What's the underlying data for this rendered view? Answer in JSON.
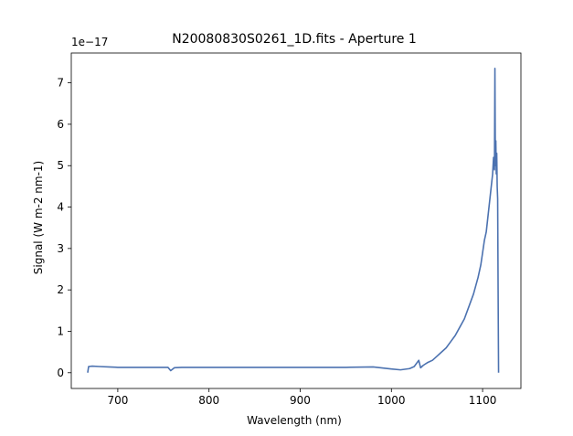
{
  "chart_data": {
    "type": "line",
    "title": "N20080830S0261_1D.fits - Aperture 1",
    "xlabel": "Wavelength (nm)",
    "ylabel": "Signal (W m-2 nm-1)",
    "y_offset_text": "1e−17",
    "xlim": [
      649,
      1142
    ],
    "ylim": [
      -0.38,
      7.72
    ],
    "x_ticks": [
      700,
      800,
      900,
      1000,
      1100
    ],
    "y_ticks": [
      0,
      1,
      2,
      3,
      4,
      5,
      6,
      7
    ],
    "grid": false,
    "series": [
      {
        "color": "#4c72b0",
        "x": [
          667,
          668,
          672,
          680,
          690,
          700,
          720,
          740,
          755,
          758,
          762,
          770,
          800,
          850,
          900,
          950,
          980,
          1000,
          1010,
          1020,
          1025,
          1030,
          1032,
          1035,
          1040,
          1045,
          1050,
          1055,
          1060,
          1065,
          1070,
          1075,
          1080,
          1085,
          1090,
          1095,
          1098,
          1100,
          1102,
          1104,
          1106,
          1108,
          1110,
          1111,
          1112,
          1113,
          1113.5,
          1114,
          1114.5,
          1115,
          1115.5,
          1116,
          1116.5,
          1117,
          1117.5
        ],
        "y": [
          0.0,
          0.15,
          0.16,
          0.15,
          0.14,
          0.13,
          0.13,
          0.13,
          0.13,
          0.05,
          0.12,
          0.13,
          0.13,
          0.13,
          0.13,
          0.13,
          0.14,
          0.09,
          0.07,
          0.1,
          0.15,
          0.3,
          0.12,
          0.18,
          0.25,
          0.3,
          0.4,
          0.5,
          0.6,
          0.75,
          0.9,
          1.1,
          1.3,
          1.6,
          1.9,
          2.3,
          2.6,
          2.9,
          3.2,
          3.4,
          3.8,
          4.2,
          4.6,
          4.8,
          5.2,
          4.9,
          7.35,
          5.0,
          5.6,
          4.8,
          5.3,
          4.5,
          4.2,
          2.0,
          0.0
        ]
      }
    ]
  }
}
